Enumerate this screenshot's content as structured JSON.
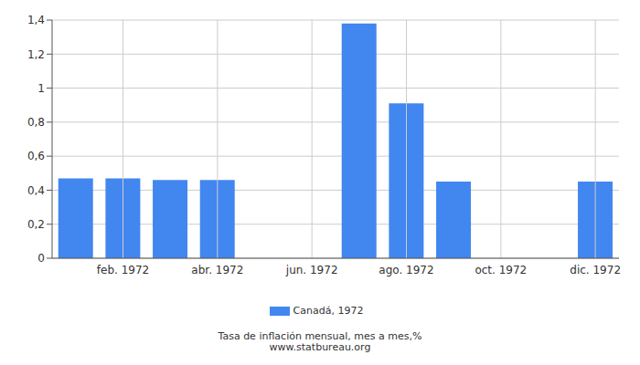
{
  "chart_data": {
    "type": "bar",
    "xlabel": "Tasa de inflación mensual, mes a mes,%",
    "source": "www.statbureau.org",
    "categories": [
      null,
      "feb. 1972",
      null,
      "abr. 1972",
      null,
      "jun. 1972",
      null,
      "ago. 1972",
      null,
      "oct. 1972",
      null,
      "dic. 1972"
    ],
    "series": [
      {
        "name": "Canadá, 1972",
        "color": "#4286f0",
        "values": [
          0.47,
          0.47,
          0.46,
          0.46,
          0,
          0,
          1.38,
          0.91,
          0.45,
          0,
          0,
          0.45
        ]
      }
    ],
    "ylim": [
      0,
      1.4
    ],
    "yticks": [
      0,
      {
        "value": 0.2,
        "label": "0,2"
      },
      {
        "value": 0.4,
        "label": "0,4"
      },
      {
        "value": 0.6,
        "label": "0,6"
      },
      {
        "value": 0.8,
        "label": "0,8"
      },
      {
        "value": 1,
        "label": "1"
      },
      {
        "value": 1.2,
        "label": "1,2"
      },
      {
        "value": 1.4,
        "label": "1,4"
      }
    ],
    "grid": true,
    "legend": "bottom"
  }
}
